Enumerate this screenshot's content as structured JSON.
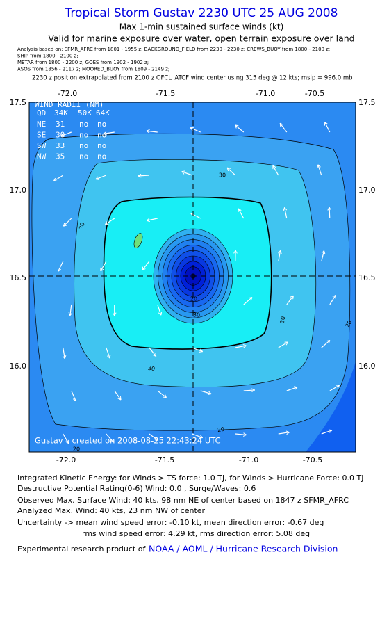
{
  "header": {
    "title": "Tropical Storm Gustav 2230 UTC 25 AUG 2008",
    "subtitle": "Max 1-min sustained surface winds (kt)",
    "validity": "Valid for marine exposure over water, open terrain exposure over land",
    "sources": [
      "Analysis based on:  SFMR_AFRC from 1801 - 1955 z;  BACKGROUND_FIELD from 2230 - 2230 z;  CREWS_BUOY from 1800 - 2100 z;",
      "SHIP from 1800 - 2100 z;",
      "METAR from 1800 - 2200 z;  GOES from 1902 - 1902 z;",
      "ASOS from 1856 - 2117 z;   MOORED_BUOY from 1809 - 2149 z;"
    ],
    "position_note": "2230 z position extrapolated from 2100 z OFCL_ATCF wind center using 315 deg @ 12 kts; mslp = 996.0 mb"
  },
  "map": {
    "top_ticks": [
      "-72.0",
      "-71.5",
      "-71.0",
      "-70.5"
    ],
    "bottom_ticks": [
      "-72.0",
      "-71.5",
      "-71.0",
      "-70.5"
    ],
    "left_ticks": [
      "17.5",
      "17.0",
      "16.5",
      "16.0"
    ],
    "right_ticks": [
      "17.5",
      "17.0",
      "16.5",
      "16.0"
    ],
    "wind_radii": {
      "title": "WIND RADII (NM)",
      "header": [
        "QD",
        "34K",
        "50K",
        "64K"
      ],
      "rows": [
        [
          "NE",
          "31",
          "no",
          "no"
        ],
        [
          "SE",
          "30",
          "no",
          "no"
        ],
        [
          "SW",
          "33",
          "no",
          "no"
        ],
        [
          "NW",
          "35",
          "no",
          "no"
        ]
      ]
    },
    "contour_labels": [
      "30",
      "30",
      "20",
      "30",
      "30",
      "30",
      "20",
      "20",
      "20"
    ],
    "credit": "Gustav – created on 2008-08-25 22:43:24 UTC"
  },
  "footer": {
    "lines": [
      "Integrated Kinetic Energy:  for Winds > TS force: 1.0 TJ,  for Winds > Hurricane Force: 0.0 TJ",
      "Destructive Potential Rating(0-6)   Wind: 0.0 , Surge/Waves: 0.6",
      "Observed Max. Surface Wind: 40 kts, 98 nm NE of center based on 1847 z SFMR_AFRC",
      "Analyzed Max. Wind: 40 kts, 23 nm NW of center",
      "Uncertainty -> mean wind speed error:  -0.10 kt,   mean direction error:  -0.67 deg",
      "rms wind speed error: 4.29 kt,   rms direction error: 5.08 deg"
    ],
    "product_prefix": "Experimental research product of",
    "product_link": "NOAA / AOML / Hurricane Research Division"
  }
}
